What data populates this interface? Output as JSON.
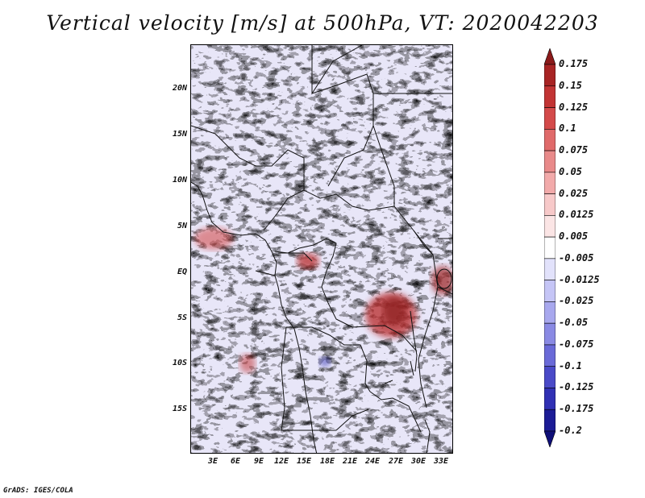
{
  "title": "Vertical velocity [m/s] at 500hPa, VT: 2020042203",
  "credit": "GrADS: IGES/COLA",
  "axes": {
    "lat_labels": [
      "20N",
      "15N",
      "10N",
      "5N",
      "EQ",
      "5S",
      "10S",
      "15S"
    ],
    "lon_labels": [
      "3E",
      "6E",
      "9E",
      "12E",
      "15E",
      "18E",
      "21E",
      "24E",
      "27E",
      "30E",
      "33E"
    ]
  },
  "colorbar": {
    "labels": [
      "0.175",
      "0.15",
      "0.125",
      "0.1",
      "0.075",
      "0.05",
      "0.025",
      "0.0125",
      "0.005",
      "-0.005",
      "-0.0125",
      "-0.025",
      "-0.05",
      "-0.075",
      "-0.1",
      "-0.125",
      "-0.175",
      "-0.2"
    ],
    "colors": [
      "#8b1a1a",
      "#a82424",
      "#c23434",
      "#d44a4a",
      "#e06a6a",
      "#e98a8a",
      "#f2aaaa",
      "#f7c9c9",
      "#fbe5e5",
      "#ffffff",
      "#e2e2fb",
      "#c5c5f6",
      "#a8a8ee",
      "#8a8ae4",
      "#6a6ad8",
      "#4a4ac8",
      "#3030b4",
      "#1c1c96",
      "#0f0f78"
    ]
  }
}
